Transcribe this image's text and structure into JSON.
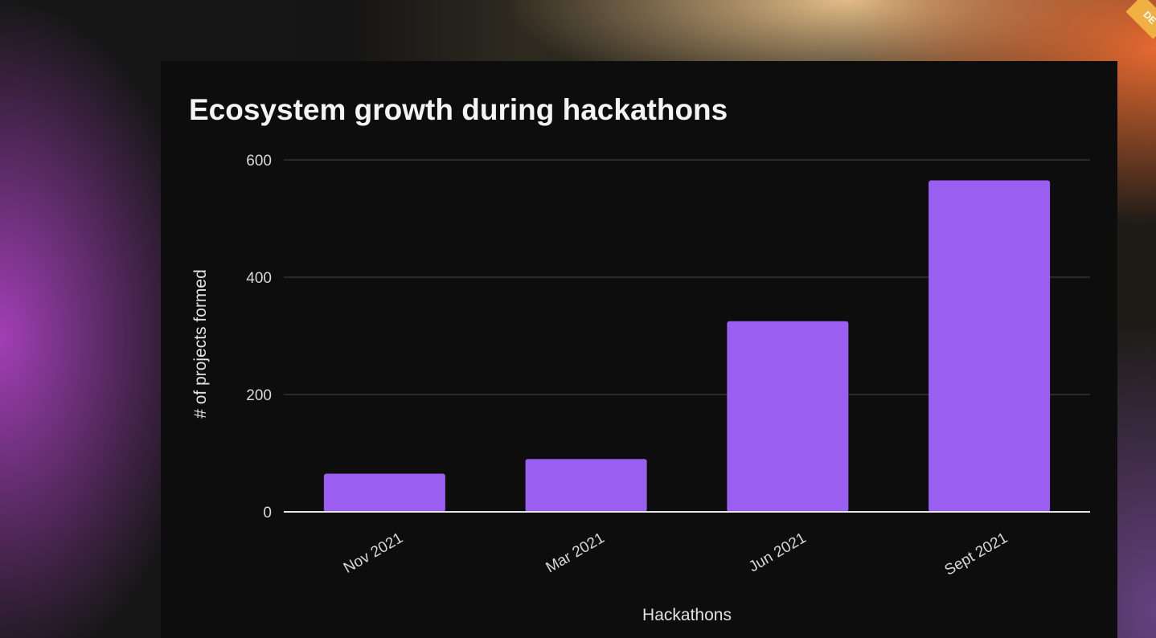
{
  "chart_data": {
    "type": "bar",
    "title": "Ecosystem growth during hackathons",
    "xlabel": "Hackathons",
    "ylabel": "# of projects formed",
    "categories": [
      "Nov 2021",
      "Mar 2021",
      "Jun 2021",
      "Sept 2021"
    ],
    "values": [
      65,
      90,
      325,
      565
    ],
    "ylim": [
      0,
      600
    ],
    "yticks": [
      0,
      200,
      400,
      600
    ],
    "grid": true,
    "bar_color": "#9a5ff0"
  },
  "colors": {
    "slide_background": "#0e0d0d",
    "grid_line": "#3d3d3d",
    "axis_line": "#e6e6e6"
  },
  "icons": {
    "corner_badge": "corner-ribbon-badge"
  }
}
